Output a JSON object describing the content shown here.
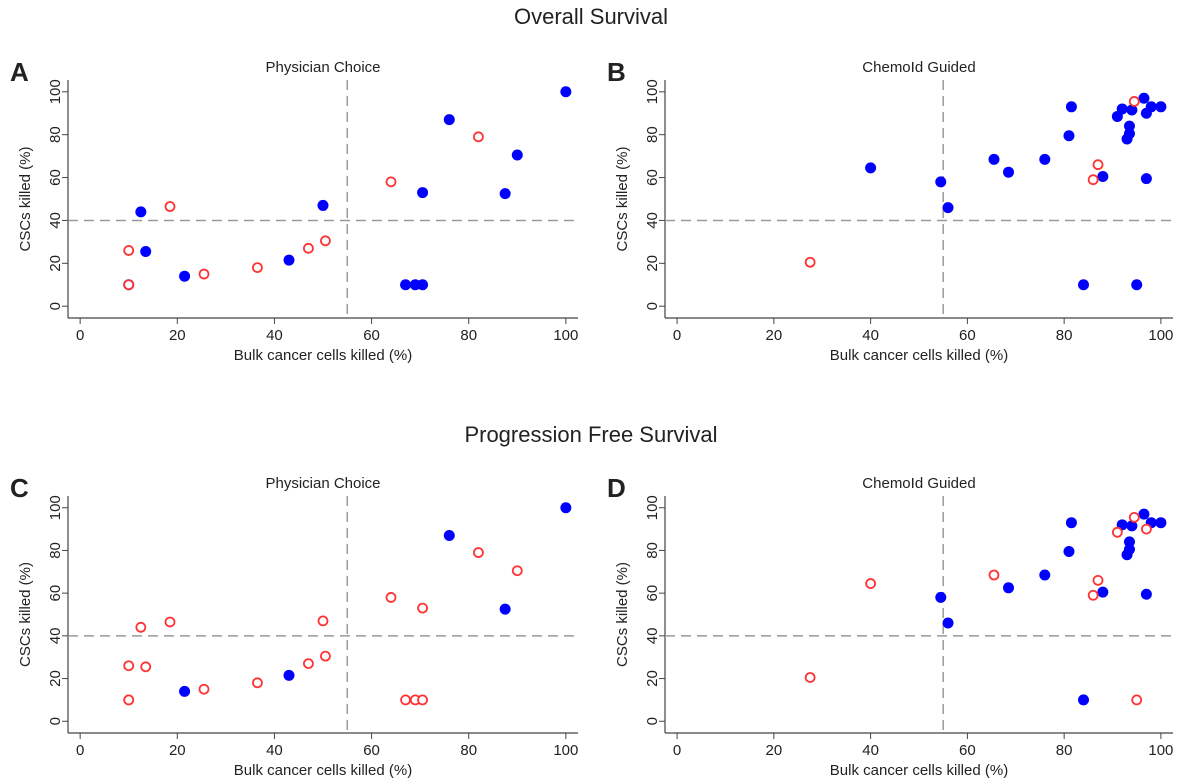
{
  "sections": [
    "Overall Survival",
    "Progression Free Survival"
  ],
  "chart_data": [
    {
      "type": "scatter",
      "label": "A",
      "title": "Physician Choice",
      "x_label": "Bulk cancer cells killed (%)",
      "y_label": "CSCs killed (%)",
      "xlim": [
        -2.5,
        102.5
      ],
      "ylim": [
        -5.5,
        105.5
      ],
      "xticks": [
        0,
        20,
        40,
        60,
        80,
        100
      ],
      "yticks": [
        0,
        20,
        40,
        60,
        80,
        100
      ],
      "vlines": [
        55
      ],
      "hlines": [
        40
      ],
      "series": [
        {
          "color": "#0000ff",
          "filled": true,
          "x": [
            10,
            12.5,
            13.5,
            21.5,
            43,
            50,
            67,
            69,
            70.5,
            70.5,
            76,
            87.5,
            90,
            100
          ],
          "values": [
            10,
            44,
            25.5,
            14,
            21.5,
            47,
            10,
            10,
            10,
            53,
            87,
            52.5,
            70.5,
            100
          ]
        },
        {
          "color": "#ff3333",
          "filled": false,
          "x": [
            10,
            10,
            18.5,
            25.5,
            36.5,
            47,
            50.5,
            64,
            82
          ],
          "values": [
            10,
            26,
            46.5,
            15,
            18,
            27,
            30.5,
            58,
            79
          ]
        }
      ]
    },
    {
      "type": "scatter",
      "label": "B",
      "title": "ChemoId Guided",
      "x_label": "Bulk cancer cells killed (%)",
      "y_label": "CSCs killed (%)",
      "xlim": [
        -2.5,
        102.5
      ],
      "ylim": [
        -5.5,
        105.5
      ],
      "xticks": [
        0,
        20,
        40,
        60,
        80,
        100
      ],
      "yticks": [
        0,
        20,
        40,
        60,
        80,
        100
      ],
      "vlines": [
        55
      ],
      "hlines": [
        40
      ],
      "series": [
        {
          "color": "#0000ff",
          "filled": true,
          "x": [
            40,
            54.5,
            56,
            65.5,
            68.5,
            76,
            81,
            81.5,
            84,
            88,
            91,
            92,
            93,
            93.5,
            93.5,
            94,
            95,
            96.5,
            97,
            97,
            98,
            100
          ],
          "values": [
            64.5,
            58,
            46,
            68.5,
            62.5,
            68.5,
            79.5,
            93,
            10,
            60.5,
            88.5,
            92,
            78,
            80.5,
            84,
            91.5,
            10,
            97,
            90,
            59.5,
            93,
            93
          ]
        },
        {
          "color": "#ff3333",
          "filled": false,
          "x": [
            27.5,
            86,
            87,
            94.5
          ],
          "values": [
            20.5,
            59,
            66,
            95.5
          ]
        }
      ]
    },
    {
      "type": "scatter",
      "label": "C",
      "title": "Physician Choice",
      "x_label": "Bulk cancer cells killed (%)",
      "y_label": "CSCs killed (%)",
      "xlim": [
        -2.5,
        102.5
      ],
      "ylim": [
        -5.5,
        105.5
      ],
      "xticks": [
        0,
        20,
        40,
        60,
        80,
        100
      ],
      "yticks": [
        0,
        20,
        40,
        60,
        80,
        100
      ],
      "vlines": [
        55
      ],
      "hlines": [
        40
      ],
      "series": [
        {
          "color": "#0000ff",
          "filled": true,
          "x": [
            21.5,
            43,
            76,
            87.5,
            100
          ],
          "values": [
            14,
            21.5,
            87,
            52.5,
            100
          ]
        },
        {
          "color": "#ff3333",
          "filled": false,
          "x": [
            10,
            10,
            10,
            12.5,
            13.5,
            18.5,
            25.5,
            36.5,
            47,
            50,
            50.5,
            64,
            67,
            69,
            70.5,
            70.5,
            82,
            90
          ],
          "values": [
            10,
            10,
            26,
            44,
            25.5,
            46.5,
            15,
            18,
            27,
            47,
            30.5,
            58,
            10,
            10,
            10,
            53,
            79,
            70.5
          ]
        }
      ]
    },
    {
      "type": "scatter",
      "label": "D",
      "title": "ChemoId Guided",
      "x_label": "Bulk cancer cells killed (%)",
      "y_label": "CSCs killed (%)",
      "xlim": [
        -2.5,
        102.5
      ],
      "ylim": [
        -5.5,
        105.5
      ],
      "xticks": [
        0,
        20,
        40,
        60,
        80,
        100
      ],
      "yticks": [
        0,
        20,
        40,
        60,
        80,
        100
      ],
      "vlines": [
        55
      ],
      "hlines": [
        40
      ],
      "series": [
        {
          "color": "#0000ff",
          "filled": true,
          "x": [
            54.5,
            56,
            68.5,
            76,
            81,
            81.5,
            84,
            88,
            92,
            93,
            93.5,
            93.5,
            94,
            96.5,
            97,
            98,
            100
          ],
          "values": [
            58,
            46,
            62.5,
            68.5,
            79.5,
            93,
            10,
            60.5,
            92,
            78,
            80.5,
            84,
            91.5,
            97,
            59.5,
            93,
            93
          ]
        },
        {
          "color": "#ff3333",
          "filled": false,
          "x": [
            27.5,
            40,
            65.5,
            86,
            87,
            91,
            95,
            94.5,
            97
          ],
          "values": [
            20.5,
            64.5,
            68.5,
            59,
            66,
            88.5,
            10,
            95.5,
            90
          ]
        }
      ]
    }
  ]
}
